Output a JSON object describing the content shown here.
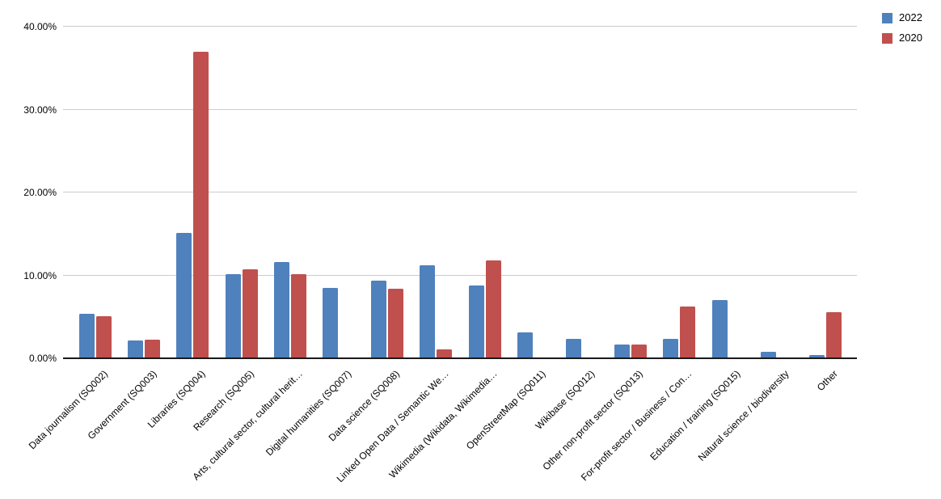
{
  "chart_data": {
    "type": "bar",
    "title": "",
    "xlabel": "",
    "ylabel": "",
    "categories": [
      "Data journalism (SQ002)",
      "Government (SQ003)",
      "Libraries (SQ004)",
      "Research (SQ005)",
      "Arts, cultural sector, cultural herit…",
      "Digital humanities (SQ007)",
      "Data science (SQ008)",
      "Linked Open Data / Semantic We…",
      "Wikimedia (Wikidata, Wikimedia…",
      "OpenStreetMap (SQ011)",
      "Wikibase (SQ012)",
      "Other non-profit sector (SQ013)",
      "For-profit sector / Business / Con…",
      "Education / training (SQ015)",
      "Natural science / biodiversity",
      "Other"
    ],
    "series": [
      {
        "name": "2022",
        "color": "#4f81bd",
        "values": [
          5.4,
          2.1,
          15.1,
          10.1,
          11.6,
          8.5,
          9.4,
          11.2,
          8.8,
          3.1,
          2.3,
          1.7,
          2.3,
          7.0,
          0.8,
          0.4
        ]
      },
      {
        "name": "2020",
        "color": "#c0504d",
        "values": [
          5.1,
          2.2,
          37.0,
          10.7,
          10.1,
          null,
          8.4,
          1.1,
          11.8,
          null,
          null,
          1.7,
          6.2,
          null,
          null,
          5.6
        ]
      }
    ],
    "y_ticks": [
      {
        "value": 0,
        "label": "0.00%"
      },
      {
        "value": 10,
        "label": "10.00%"
      },
      {
        "value": 20,
        "label": "20.00%"
      },
      {
        "value": 30,
        "label": "30.00%"
      },
      {
        "value": 40,
        "label": "40.00%"
      }
    ],
    "ylim": [
      0,
      40
    ],
    "grid": true,
    "legend_position": "top-right",
    "colors": {
      "background": "#ffffff",
      "gridline": "#cccccc",
      "axis": "#1a1a1a",
      "text": "#000000"
    }
  }
}
